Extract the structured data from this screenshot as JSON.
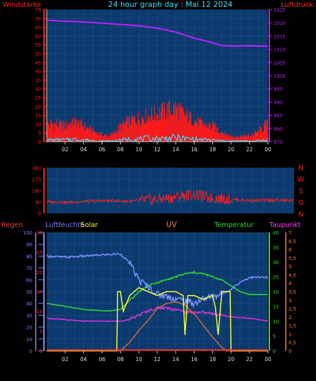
{
  "colors": {
    "background": "#000000",
    "panel": "#0b3a6e",
    "grid": "#4d7fb8",
    "wind": "#ff1a1a",
    "gust": "#40e0ff",
    "pressure": "#c020ff",
    "direction": "#ff2020",
    "humidity": "#7f8fff",
    "solar": "#ffff30",
    "uv": "#d07030",
    "temperature": "#30e030",
    "dewpoint": "#e030e0",
    "rain": "#ff3030"
  },
  "chart_data": [
    {
      "type": "line",
      "name": "wind-pressure",
      "title": "24 hour graph day : Mai 12 2024",
      "left_axis_label": "Windstärke",
      "right_axis_label": "Luftdruck",
      "x_ticks": [
        "02",
        "04",
        "06",
        "08",
        "10",
        "12",
        "14",
        "16",
        "18",
        "20",
        "22",
        "00"
      ],
      "left_ticks": [
        "75",
        "70",
        "65",
        "60",
        "55",
        "50",
        "45",
        "40",
        "35",
        "30",
        "25",
        "20",
        "15",
        "10",
        "5",
        "0"
      ],
      "right_ticks": [
        "1025",
        "1020",
        "1015",
        "1010",
        "1005",
        "1000",
        "995",
        "990",
        "985",
        "980",
        "975"
      ],
      "left_range": [
        0,
        75
      ],
      "right_range": [
        975,
        1025
      ],
      "pressure_hours": [
        0,
        2,
        4,
        6,
        8,
        10,
        12,
        14,
        16,
        18,
        19,
        20,
        22,
        24
      ],
      "pressure_values": [
        1021,
        1020.6,
        1020.3,
        1019.9,
        1019.4,
        1018.9,
        1018,
        1016.5,
        1014.2,
        1012.5,
        1011.4,
        1011.2,
        1011.3,
        1011.1
      ],
      "wind_hours": [
        0,
        1,
        2,
        3,
        4,
        5,
        6,
        7,
        8,
        9,
        10,
        11,
        12,
        13,
        14,
        15,
        16,
        17,
        18,
        19,
        20,
        21,
        22,
        23,
        24
      ],
      "wind_values": [
        5,
        6,
        6,
        8,
        6,
        4,
        2,
        2,
        5,
        8,
        9,
        10,
        10,
        11,
        12,
        10,
        8,
        6,
        5,
        3,
        2,
        2,
        2,
        3,
        7
      ],
      "gust_max_values": [
        14,
        14,
        12,
        15,
        12,
        8,
        5,
        5,
        12,
        16,
        18,
        20,
        22,
        24,
        26,
        20,
        16,
        13,
        12,
        8,
        4,
        4,
        5,
        8,
        15
      ]
    },
    {
      "type": "scatter",
      "name": "wind-direction",
      "right_ticks": [
        "360",
        "270",
        "180",
        "90",
        "0"
      ],
      "right_letters": [
        "N",
        "W",
        "S",
        "O",
        "N"
      ],
      "range": [
        0,
        360
      ],
      "hours": [
        0,
        2,
        4,
        6,
        8,
        10,
        12,
        14,
        16,
        18,
        20,
        22,
        24
      ],
      "values": [
        90,
        85,
        95,
        100,
        95,
        105,
        120,
        150,
        120,
        110,
        100,
        105,
        100
      ]
    },
    {
      "type": "line",
      "name": "climate",
      "labels": {
        "rain": "Regen",
        "humidity": "Luftfeuchte",
        "solar": "Solar",
        "uv": "UV",
        "temperature": "Temperatur",
        "dewpoint": "Taupunkt"
      },
      "x_ticks": [
        "02",
        "04",
        "06",
        "08",
        "10",
        "12",
        "14",
        "16",
        "18",
        "20",
        "22",
        "00"
      ],
      "rain_ticks": [
        "100",
        "90",
        "80",
        "70",
        "60",
        "50",
        "40",
        "30",
        "20",
        "10",
        "0"
      ],
      "rain_range": [
        0,
        100
      ],
      "humidity_ticks": [
        "100",
        "90",
        "80",
        "70",
        "60",
        "50",
        "40",
        "30",
        "20",
        "10",
        "0"
      ],
      "humidity_range": [
        0,
        100
      ],
      "solar_ticks": [
        "30",
        "25",
        "20",
        "15",
        "10",
        "5",
        "0"
      ],
      "solar_range": [
        0,
        30
      ],
      "temperature_ticks": [
        "40",
        "35",
        "30",
        "25",
        "20",
        "15",
        "10",
        "5",
        "0"
      ],
      "temperature_range": [
        0,
        40
      ],
      "uv_ticks": [
        "7",
        "6,5",
        "6",
        "5,5",
        "5",
        "4,5",
        "4",
        "3,5",
        "3",
        "2,5",
        "2",
        "1,5",
        "1",
        "0,5",
        "0"
      ],
      "uv_range": [
        0,
        7
      ],
      "humidity_hours": [
        0,
        2,
        4,
        6,
        8,
        9,
        10,
        11,
        12,
        13,
        14,
        15,
        16,
        17,
        18,
        19,
        20,
        21,
        22,
        23,
        24
      ],
      "humidity_values": [
        80,
        79,
        80,
        81,
        82,
        74,
        60,
        54,
        48,
        46,
        44,
        42,
        40,
        44,
        46,
        48,
        52,
        58,
        62,
        62,
        62
      ],
      "temperature_hours": [
        0,
        2,
        4,
        6,
        7,
        8,
        9,
        10,
        11,
        12,
        13,
        14,
        15,
        16,
        17,
        18,
        19,
        20,
        21,
        22,
        23,
        24
      ],
      "temperature_values": [
        16,
        15,
        14,
        13.5,
        13.5,
        14,
        17,
        20,
        22,
        23,
        24,
        25,
        26,
        26.5,
        26,
        25,
        24,
        22,
        20,
        19,
        19,
        19
      ],
      "dewpoint_hours": [
        0,
        2,
        4,
        6,
        8,
        9,
        10,
        11,
        12,
        13,
        14,
        15,
        16,
        17,
        18,
        19,
        20,
        22,
        24
      ],
      "dewpoint_values": [
        11,
        10.5,
        10,
        10,
        10,
        10.5,
        12,
        13.5,
        14.5,
        14.5,
        14,
        13,
        13,
        13,
        12.5,
        12,
        11.5,
        11,
        10
      ],
      "solar_hours": [
        0,
        7.6,
        7.7,
        8,
        8.3,
        9,
        10,
        11,
        12,
        13,
        14,
        14.8,
        15,
        15.3,
        16,
        17,
        18,
        18.3,
        18.6,
        19,
        19.5,
        19.9,
        20,
        24
      ],
      "solar_values": [
        0,
        0,
        15,
        15,
        10,
        14,
        16,
        15,
        14,
        15,
        15,
        14,
        4,
        14,
        14,
        13,
        14,
        11,
        4,
        15,
        15,
        15,
        0,
        0
      ],
      "uv_hours": [
        0,
        8,
        9,
        10,
        11,
        12,
        13,
        14,
        15,
        16,
        17,
        18,
        19,
        19.5,
        24
      ],
      "uv_values": [
        0,
        0,
        0.5,
        1.2,
        1.8,
        2.5,
        2.8,
        2.9,
        2.7,
        2.2,
        1.5,
        0.8,
        0.2,
        0,
        0
      ]
    }
  ]
}
